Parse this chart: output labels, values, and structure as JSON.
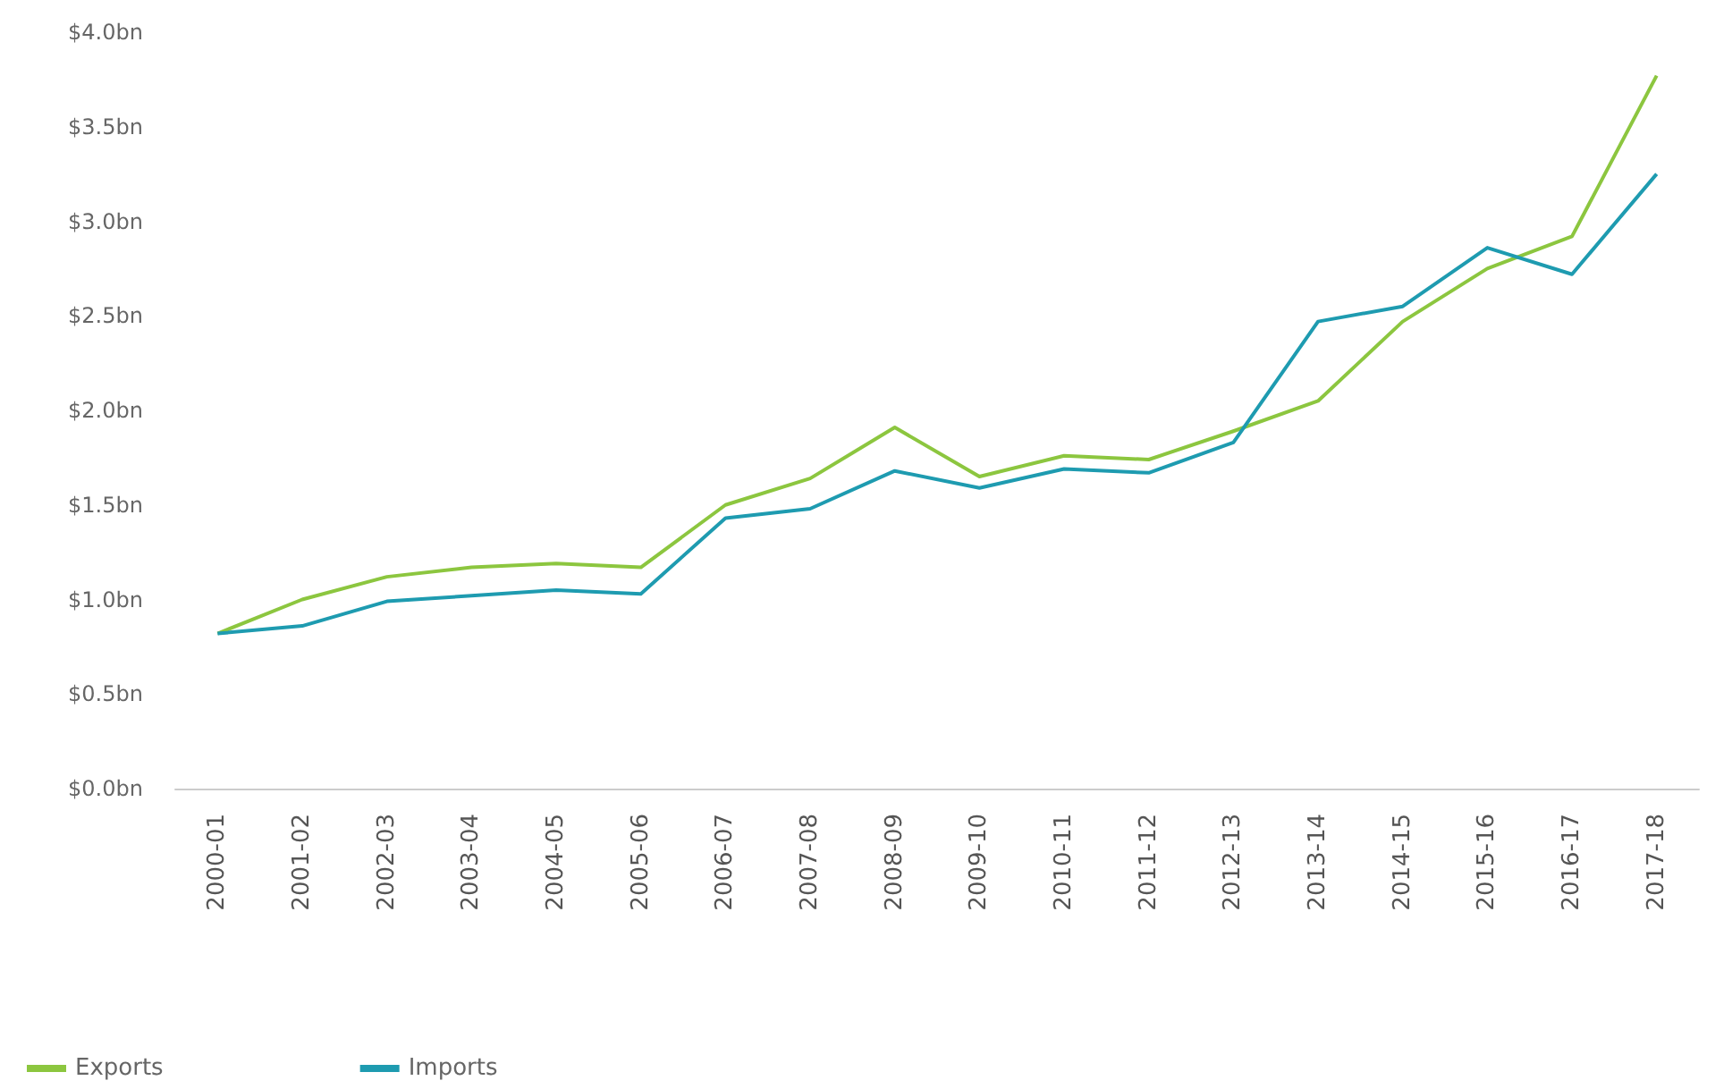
{
  "chart_data": {
    "type": "line",
    "categories": [
      "2000-01",
      "2001-02",
      "2002-03",
      "2003-04",
      "2004-05",
      "2005-06",
      "2006-07",
      "2007-08",
      "2008-09",
      "2009-10",
      "2010-11",
      "2011-12",
      "2012-13",
      "2013-14",
      "2014-15",
      "2015-16",
      "2016-17",
      "2017-18"
    ],
    "series": [
      {
        "name": "Exports",
        "color": "#8cc63f",
        "values": [
          0.82,
          1.0,
          1.12,
          1.17,
          1.19,
          1.17,
          1.5,
          1.64,
          1.91,
          1.65,
          1.76,
          1.74,
          1.89,
          2.05,
          2.47,
          2.75,
          2.92,
          3.77
        ]
      },
      {
        "name": "Imports",
        "color": "#1e9bb0",
        "values": [
          0.82,
          0.86,
          0.99,
          1.02,
          1.05,
          1.03,
          1.43,
          1.48,
          1.68,
          1.59,
          1.69,
          1.67,
          1.83,
          2.47,
          2.55,
          2.86,
          2.72,
          3.25
        ]
      }
    ],
    "ylim": [
      0,
      4
    ],
    "yticks": [
      {
        "value": 0,
        "label": "$0.0bn"
      },
      {
        "value": 0.5,
        "label": "$0.5bn"
      },
      {
        "value": 1,
        "label": "$1.0bn"
      },
      {
        "value": 1.5,
        "label": "$1.5bn"
      },
      {
        "value": 2,
        "label": "$2.0bn"
      },
      {
        "value": 2.5,
        "label": "$2.5bn"
      },
      {
        "value": 3,
        "label": "$3.0bn"
      },
      {
        "value": 3.5,
        "label": "$3.5bn"
      },
      {
        "value": 4,
        "label": "$4.0bn"
      }
    ],
    "grid": false,
    "legend": "bottom left",
    "marker": "none",
    "line_style": "solid"
  }
}
